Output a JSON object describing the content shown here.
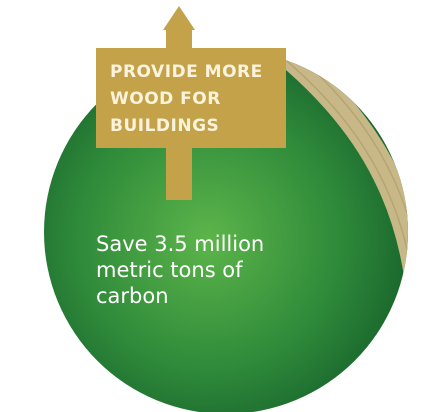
{
  "sign": {
    "lines": [
      "PROVIDE MORE",
      "WOOD FOR",
      "BUILDINGS"
    ]
  },
  "caption": {
    "lines": [
      "Save 3.5 million",
      "metric tons of",
      "carbon"
    ]
  }
}
